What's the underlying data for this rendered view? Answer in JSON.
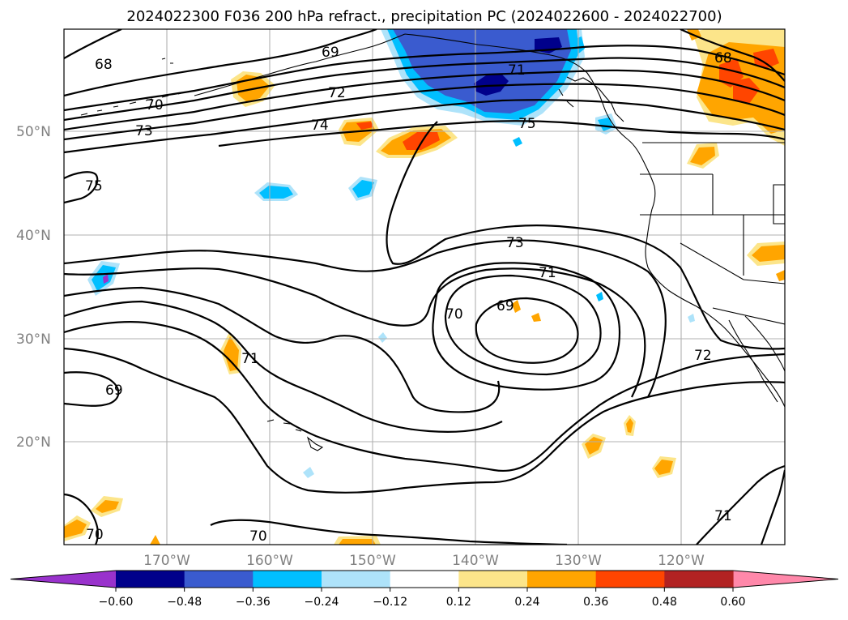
{
  "title": "2024022300 F036 200 hPa refract., precipitation PC (2024022600 - 2024022700)",
  "lat_labels": [
    "50°N",
    "40°N",
    "30°N",
    "20°N"
  ],
  "lon_labels": [
    "170°W",
    "160°W",
    "150°W",
    "140°W",
    "130°W",
    "120°W"
  ],
  "contour_labels": {
    "c68_nw": "68",
    "c69_top": "69",
    "c71_top": "71",
    "c68_ne": "68",
    "c70_n": "70",
    "c72_n": "72",
    "c73_n": "73",
    "c74_n": "74",
    "c75_n": "75",
    "c75_w": "75",
    "c73_c": "73",
    "c71_c": "71",
    "c70_c": "70",
    "c69_c": "69",
    "c72_e": "72",
    "c71_w": "71",
    "c69_w": "69",
    "c70_sw": "70",
    "c70_s": "70",
    "c71_se": "71"
  },
  "colorbar": {
    "ticks": [
      "−0.60",
      "−0.48",
      "−0.36",
      "−0.24",
      "−0.12",
      "0.12",
      "0.24",
      "0.36",
      "0.48",
      "0.60"
    ],
    "colors": [
      "#9932cc",
      "#00008b",
      "#3a5bcf",
      "#00bfff",
      "#aee3fa",
      "#ffffff",
      "#fce58a",
      "#ffa500",
      "#ff4500",
      "#b22222",
      "#ff88aa"
    ]
  },
  "shading_colors": {
    "neg_light": "#aee3fa",
    "neg_mid": "#00bfff",
    "neg_blue": "#3a5bcf",
    "neg_dark": "#00008b",
    "neg_purple": "#9932cc",
    "pos_light": "#fce58a",
    "pos_mid": "#ffa500",
    "pos_red": "#ff4500"
  }
}
